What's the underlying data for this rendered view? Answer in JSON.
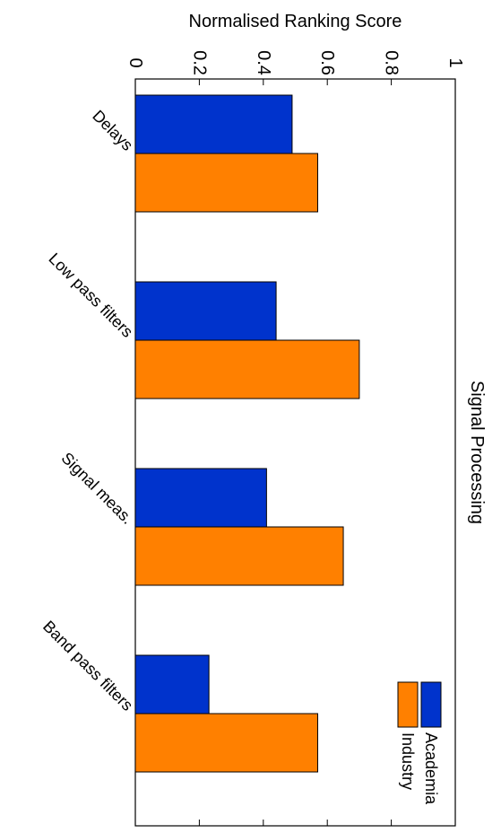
{
  "chart_data": {
    "type": "bar",
    "title": "Signal Processing",
    "ylabel": "Normalised Ranking Score",
    "xlabel": "",
    "categories": [
      "Delays",
      "Low pass filters",
      "Signal meas.",
      "Band pass filters"
    ],
    "series": [
      {
        "name": "Academia",
        "values": [
          0.49,
          0.44,
          0.41,
          0.23
        ],
        "color": "#0033cc"
      },
      {
        "name": "Industry",
        "values": [
          0.57,
          0.7,
          0.65,
          0.57
        ],
        "color": "#ff8000"
      }
    ],
    "ylim": [
      0,
      1
    ],
    "yticks": [
      "0",
      "0.2",
      "0.4",
      "0.6",
      "0.8",
      "1"
    ],
    "grid": false,
    "legend_position": "bottom-right",
    "orientation": "rotated 90 degrees clockwise"
  }
}
